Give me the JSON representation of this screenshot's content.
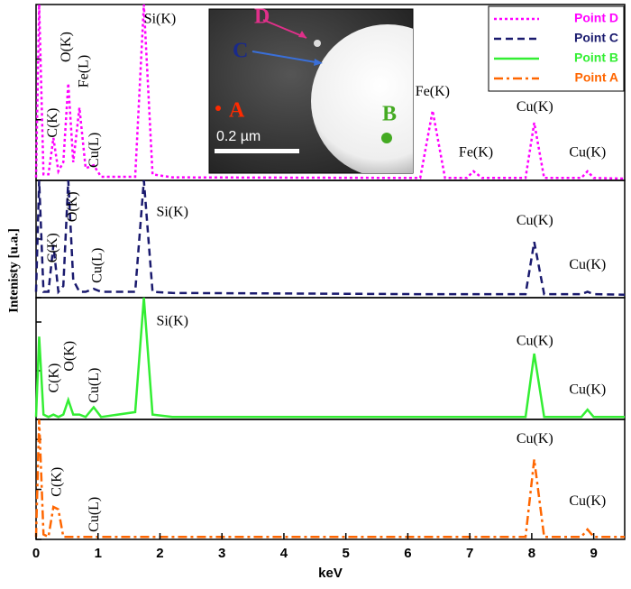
{
  "chart_data": [
    {
      "type": "line",
      "legend": "upper right",
      "ylabel": "Intenisty [u.a.]",
      "xlim": [
        0,
        9.5
      ],
      "ylim": [
        0,
        2.9
      ],
      "yticks": [
        0,
        1,
        2
      ],
      "x": [
        0,
        0.05,
        0.12,
        0.2,
        0.28,
        0.36,
        0.44,
        0.52,
        0.6,
        0.7,
        0.8,
        0.93,
        1.05,
        1.6,
        1.74,
        1.88,
        2.2,
        6.2,
        6.4,
        6.6,
        6.95,
        7.06,
        7.2,
        7.9,
        8.04,
        8.2,
        8.8,
        8.9,
        9.0,
        9.5
      ],
      "series": [
        {
          "name": "Point D",
          "color": "#ff00ff",
          "dash": "dot",
          "values": [
            0.05,
            2.9,
            0.1,
            0.1,
            0.7,
            0.15,
            0.3,
            1.6,
            0.3,
            1.2,
            0.2,
            0.25,
            0.06,
            0.06,
            2.9,
            0.1,
            0.05,
            0.04,
            1.15,
            0.04,
            0.04,
            0.15,
            0.04,
            0.04,
            0.95,
            0.04,
            0.04,
            0.15,
            0.04,
            0.03
          ]
        }
      ],
      "annotations": [
        {
          "text": "Si(K)",
          "x": 2.0,
          "y": 2.65
        },
        {
          "text": "O(K)",
          "x": 0.5,
          "y": 2.2
        },
        {
          "text": "Fe(L)",
          "x": 0.78,
          "y": 1.8
        },
        {
          "text": "C(K)",
          "x": 0.28,
          "y": 0.95
        },
        {
          "text": "Cu(L)",
          "x": 0.95,
          "y": 0.5
        },
        {
          "text": "Fe(K)",
          "x": 6.4,
          "y": 1.45
        },
        {
          "text": "Fe(K)",
          "x": 7.1,
          "y": 0.45
        },
        {
          "text": "Cu(K)",
          "x": 8.05,
          "y": 1.2
        },
        {
          "text": "Cu(K)",
          "x": 8.9,
          "y": 0.45
        }
      ]
    },
    {
      "type": "line",
      "xlim": [
        0,
        9.5
      ],
      "ylim": [
        0,
        2
      ],
      "yticks": [
        0,
        1
      ],
      "x": [
        0,
        0.05,
        0.12,
        0.2,
        0.28,
        0.36,
        0.44,
        0.52,
        0.6,
        0.7,
        0.8,
        0.93,
        1.05,
        1.6,
        1.74,
        1.88,
        2.2,
        6.2,
        6.4,
        6.6,
        6.95,
        7.06,
        7.2,
        7.9,
        8.04,
        8.2,
        8.8,
        8.9,
        9.0,
        9.5
      ],
      "series": [
        {
          "name": "Point C",
          "color": "#1a1a6e",
          "dash": "dash",
          "values": [
            0.1,
            2,
            0.1,
            0.1,
            0.9,
            0.1,
            0.2,
            2,
            0.3,
            0.1,
            0.1,
            0.15,
            0.1,
            0.1,
            2,
            0.1,
            0.08,
            0.06,
            0.06,
            0.06,
            0.06,
            0.06,
            0.06,
            0.06,
            0.95,
            0.06,
            0.06,
            0.1,
            0.06,
            0.05
          ]
        }
      ],
      "annotations": [
        {
          "text": "O(K)",
          "x": 0.6,
          "y": 1.55
        },
        {
          "text": "Si(K)",
          "x": 2.2,
          "y": 1.45
        },
        {
          "text": "C(K)",
          "x": 0.28,
          "y": 0.85
        },
        {
          "text": "Cu(L)",
          "x": 1.0,
          "y": 0.55
        },
        {
          "text": "Cu(K)",
          "x": 8.05,
          "y": 1.3
        },
        {
          "text": "Cu(K)",
          "x": 8.9,
          "y": 0.55
        }
      ]
    },
    {
      "type": "line",
      "xlim": [
        0,
        9.5
      ],
      "ylim": [
        0,
        2.5
      ],
      "yticks": [
        0,
        1,
        2
      ],
      "x": [
        0,
        0.05,
        0.12,
        0.2,
        0.28,
        0.36,
        0.44,
        0.52,
        0.6,
        0.7,
        0.8,
        0.93,
        1.05,
        1.6,
        1.74,
        1.88,
        2.2,
        6.2,
        6.4,
        6.6,
        6.95,
        7.06,
        7.2,
        7.9,
        8.04,
        8.2,
        8.8,
        8.9,
        9.0,
        9.5
      ],
      "series": [
        {
          "name": "Point B",
          "color": "#33ee33",
          "dash": "solid",
          "values": [
            0.05,
            1.7,
            0.1,
            0.05,
            0.1,
            0.05,
            0.1,
            0.4,
            0.1,
            0.1,
            0.05,
            0.25,
            0.05,
            0.15,
            2.5,
            0.1,
            0.05,
            0.05,
            0.05,
            0.05,
            0.05,
            0.05,
            0.05,
            0.05,
            1.35,
            0.05,
            0.05,
            0.2,
            0.05,
            0.05
          ]
        }
      ],
      "annotations": [
        {
          "text": "Si(K)",
          "x": 2.2,
          "y": 2.0
        },
        {
          "text": "C(K)",
          "x": 0.3,
          "y": 0.85
        },
        {
          "text": "O(K)",
          "x": 0.55,
          "y": 1.3
        },
        {
          "text": "Cu(L)",
          "x": 0.95,
          "y": 0.7
        },
        {
          "text": "Cu(K)",
          "x": 8.05,
          "y": 1.6
        },
        {
          "text": "Cu(K)",
          "x": 8.9,
          "y": 0.6
        }
      ]
    },
    {
      "type": "line",
      "xlabel": "keV",
      "xlim": [
        0,
        9.5
      ],
      "ylim": [
        0,
        2.4
      ],
      "yticks": [
        0,
        1,
        2
      ],
      "xticks": [
        0,
        1,
        2,
        3,
        4,
        5,
        6,
        7,
        8,
        9
      ],
      "x": [
        0,
        0.05,
        0.12,
        0.2,
        0.28,
        0.36,
        0.44,
        0.52,
        0.6,
        0.7,
        0.8,
        0.93,
        1.05,
        1.6,
        1.74,
        1.88,
        2.2,
        6.2,
        6.4,
        6.6,
        6.95,
        7.06,
        7.2,
        7.9,
        8.04,
        8.2,
        8.8,
        8.9,
        9.0,
        9.5
      ],
      "series": [
        {
          "name": "Point A",
          "color": "#ff6600",
          "dash": "dashdot",
          "values": [
            0.05,
            2.4,
            0.1,
            0.05,
            0.65,
            0.6,
            0.05,
            0.05,
            0.05,
            0.05,
            0.05,
            0.05,
            0.05,
            0.05,
            0.05,
            0.05,
            0.05,
            0.05,
            0.05,
            0.05,
            0.05,
            0.05,
            0.05,
            0.05,
            1.6,
            0.05,
            0.05,
            0.2,
            0.05,
            0.05
          ]
        }
      ],
      "annotations": [
        {
          "text": "C(K)",
          "x": 0.35,
          "y": 1.15
        },
        {
          "text": "Cu(L)",
          "x": 0.95,
          "y": 0.5
        },
        {
          "text": "Cu(K)",
          "x": 8.05,
          "y": 2.0
        },
        {
          "text": "Cu(K)",
          "x": 8.9,
          "y": 0.75
        }
      ]
    }
  ],
  "inset": {
    "labels": [
      "D",
      "C",
      "A",
      "B"
    ],
    "scale_bar": "0.2 µm"
  }
}
